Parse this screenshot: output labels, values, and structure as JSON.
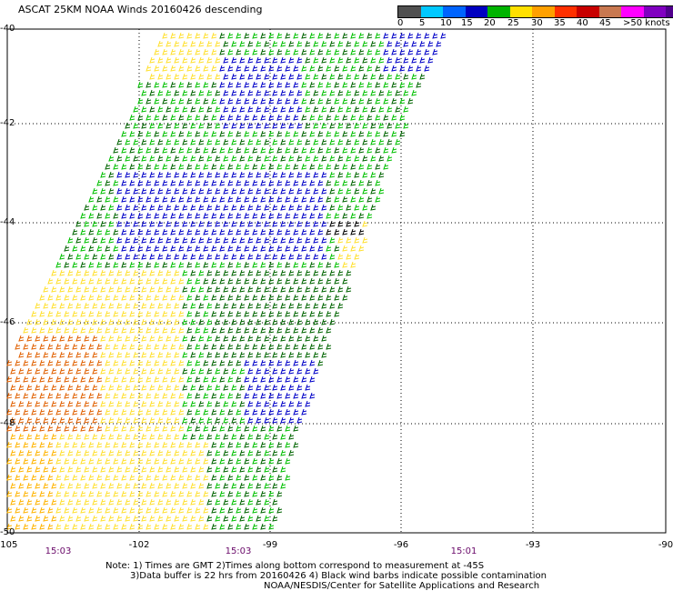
{
  "title": "ASCAT 25KM NOAA Winds 20160426 descending",
  "legend": {
    "labels": [
      "0",
      "5",
      "10",
      "15",
      "20",
      "25",
      "30",
      "35",
      "40",
      "45",
      ">50 knots"
    ],
    "colors": [
      "#505050",
      "#00c8ff",
      "#0064ff",
      "#0000c0",
      "#00b400",
      "#ffe000",
      "#ffa000",
      "#ff3000",
      "#c80000",
      "#c87850",
      "#ff00ff",
      "#8000c0",
      "#50008c"
    ]
  },
  "axes": {
    "lat_labels": [
      "-40",
      "-42",
      "-44",
      "-46",
      "-48",
      "-50"
    ],
    "lon_labels": [
      "-105",
      "-102",
      "-99",
      "-96",
      "-93",
      "-90"
    ]
  },
  "time_labels": [
    "15:03",
    "15:03",
    "15:01"
  ],
  "notes": {
    "line1": "Note: 1) Times are GMT 2)Times along bottom correspond to measurement at -45S",
    "line2": "3)Data buffer is 22 hrs from 20160426 4) Black wind barbs indicate possible contamination",
    "line3": "NOAA/NESDIS/Center for Satellite Applications and Research"
  },
  "wind_colors": {
    "dark_blue": "#0000c8",
    "green": "#00c000",
    "dark_green": "#006400",
    "yellow": "#ffe030",
    "gold": "#ffb400",
    "orange": "#e06000",
    "black": "#000000"
  }
}
